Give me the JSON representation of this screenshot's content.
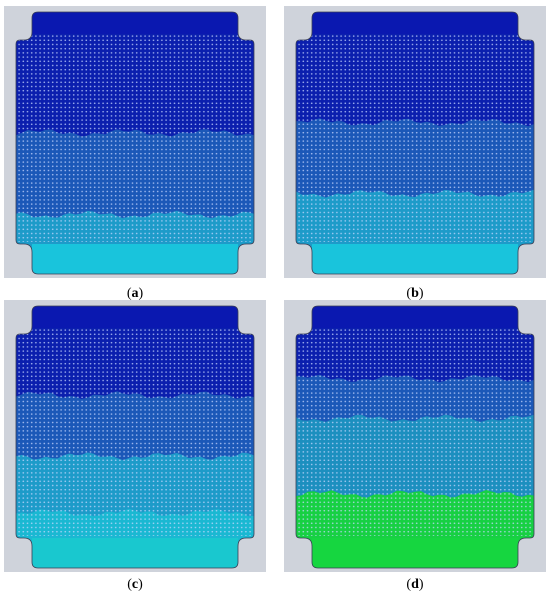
{
  "figure": {
    "panels": [
      {
        "id": "a",
        "label": "a",
        "bands": [
          {
            "from": 0.0,
            "to": 0.47,
            "color": "#0b1fae"
          },
          {
            "from": 0.47,
            "to": 0.86,
            "color": "#1b58b8"
          },
          {
            "from": 0.86,
            "to": 1.0,
            "color": "#1d9bc9"
          }
        ],
        "bottom_pool_color": "#19c4dc"
      },
      {
        "id": "b",
        "label": "b",
        "bands": [
          {
            "from": 0.0,
            "to": 0.42,
            "color": "#0b1fae"
          },
          {
            "from": 0.42,
            "to": 0.76,
            "color": "#1b58b8"
          },
          {
            "from": 0.76,
            "to": 1.0,
            "color": "#1d9bc9"
          }
        ],
        "bottom_pool_color": "#19c4dc"
      },
      {
        "id": "c",
        "label": "c",
        "bands": [
          {
            "from": 0.0,
            "to": 0.32,
            "color": "#0b1fae"
          },
          {
            "from": 0.32,
            "to": 0.61,
            "color": "#1b58b8"
          },
          {
            "from": 0.61,
            "to": 0.88,
            "color": "#1d9bc9"
          },
          {
            "from": 0.88,
            "to": 1.0,
            "color": "#1ab8d2"
          }
        ],
        "bottom_pool_color": "#19c8cf"
      },
      {
        "id": "d",
        "label": "d",
        "bands": [
          {
            "from": 0.0,
            "to": 0.24,
            "color": "#0b1fae"
          },
          {
            "from": 0.24,
            "to": 0.43,
            "color": "#1b58b8"
          },
          {
            "from": 0.43,
            "to": 0.79,
            "color": "#1c8fbf"
          },
          {
            "from": 0.79,
            "to": 1.0,
            "color": "#17d043"
          }
        ],
        "bottom_pool_color": "#16d640"
      }
    ],
    "top_cap_color": "#0a18b0",
    "hole_color": "#c8d6ff"
  }
}
